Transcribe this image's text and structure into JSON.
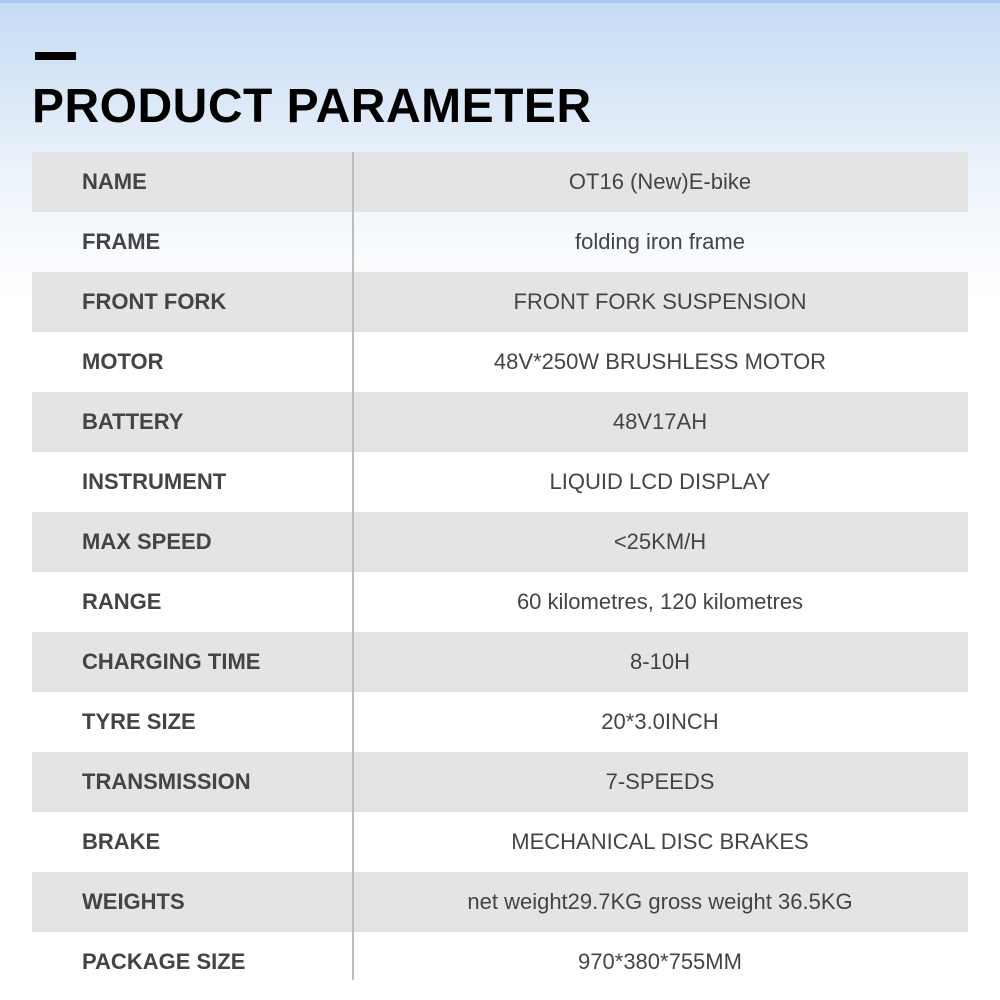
{
  "title": "PRODUCT PARAMETER",
  "rows": [
    {
      "label": "NAME",
      "value": "OT16 (New)E-bike"
    },
    {
      "label": "FRAME",
      "value": "folding iron frame"
    },
    {
      "label": "FRONT FORK",
      "value": "FRONT FORK SUSPENSION"
    },
    {
      "label": "MOTOR",
      "value": "48V*250W BRUSHLESS MOTOR"
    },
    {
      "label": "BATTERY",
      "value": "48V17AH"
    },
    {
      "label": "INSTRUMENT",
      "value": "LIQUID LCD DISPLAY"
    },
    {
      "label": "MAX SPEED",
      "value": "<25KM/H"
    },
    {
      "label": "RANGE",
      "value": "60 kilometres, 120 kilometres"
    },
    {
      "label": "CHARGING TIME",
      "value": "8-10H"
    },
    {
      "label": "TYRE SIZE",
      "value": "20*3.0INCH"
    },
    {
      "label": "TRANSMISSION",
      "value": "7-SPEEDS"
    },
    {
      "label": "BRAKE",
      "value": "MECHANICAL DISC BRAKES"
    },
    {
      "label": "WEIGHTS",
      "value": "net weight29.7KG gross weight 36.5KG"
    },
    {
      "label": "PACKAGE SIZE",
      "value": "970*380*755MM"
    }
  ]
}
